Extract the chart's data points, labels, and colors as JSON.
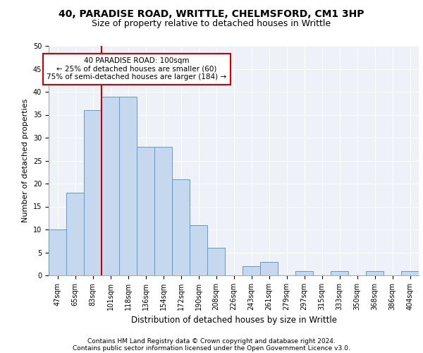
{
  "title1": "40, PARADISE ROAD, WRITTLE, CHELMSFORD, CM1 3HP",
  "title2": "Size of property relative to detached houses in Writtle",
  "xlabel": "Distribution of detached houses by size in Writtle",
  "ylabel": "Number of detached properties",
  "categories": [
    "47sqm",
    "65sqm",
    "83sqm",
    "101sqm",
    "118sqm",
    "136sqm",
    "154sqm",
    "172sqm",
    "190sqm",
    "208sqm",
    "226sqm",
    "243sqm",
    "261sqm",
    "279sqm",
    "297sqm",
    "315sqm",
    "333sqm",
    "350sqm",
    "368sqm",
    "386sqm",
    "404sqm"
  ],
  "values": [
    10,
    18,
    36,
    39,
    39,
    28,
    28,
    21,
    11,
    6,
    0,
    2,
    3,
    0,
    1,
    0,
    1,
    0,
    1,
    0,
    1
  ],
  "bar_color": "#c5d8ed",
  "bar_edge_color": "#5b9bd5",
  "vline_x_index": 3,
  "annotation_title": "40 PARADISE ROAD: 100sqm",
  "annotation_line1": "← 25% of detached houses are smaller (60)",
  "annotation_line2": "75% of semi-detached houses are larger (184) →",
  "annotation_box_color": "#ffffff",
  "annotation_box_edge": "#cc0000",
  "vline_color": "#cc0000",
  "ylim": [
    0,
    50
  ],
  "yticks": [
    0,
    5,
    10,
    15,
    20,
    25,
    30,
    35,
    40,
    45,
    50
  ],
  "footer1": "Contains HM Land Registry data © Crown copyright and database right 2024.",
  "footer2": "Contains public sector information licensed under the Open Government Licence v3.0.",
  "background_color": "#eef2f8",
  "grid_color": "#ffffff",
  "title1_fontsize": 10,
  "title2_fontsize": 9,
  "xlabel_fontsize": 8.5,
  "ylabel_fontsize": 8,
  "tick_fontsize": 7,
  "footer_fontsize": 6.5,
  "ann_fontsize": 7.5
}
